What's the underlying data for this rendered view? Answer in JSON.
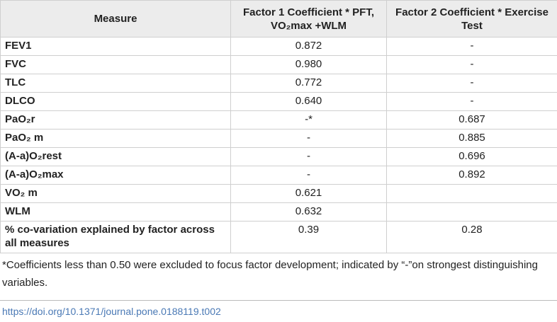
{
  "table": {
    "header": [
      "Measure",
      "Factor 1 Coefficient * PFT, VO₂max +WLM",
      "Factor 2 Coefficient * Exercise Test"
    ],
    "rows": [
      [
        "FEV1",
        "0.872",
        "-"
      ],
      [
        "FVC",
        "0.980",
        "-"
      ],
      [
        "TLC",
        "0.772",
        "-"
      ],
      [
        "DLCO",
        "0.640",
        "-"
      ],
      [
        "PaO₂r",
        "-*",
        "0.687"
      ],
      [
        "PaO₂ m",
        "-",
        "0.885"
      ],
      [
        "(A-a)O₂rest",
        "-",
        "0.696"
      ],
      [
        "(A-a)O₂max",
        "-",
        "0.892"
      ],
      [
        "VO₂ m",
        "0.621",
        null
      ],
      [
        "WLM",
        "0.632",
        null
      ],
      [
        "% co-variation explained by factor across all measures",
        "0.39",
        "0.28"
      ]
    ]
  },
  "footnote": "*Coefficients less than 0.50 were excluded to focus factor development; indicated by “-”on strongest distinguishing variables.",
  "doi": "https://doi.org/10.1371/journal.pone.0188119.t002"
}
